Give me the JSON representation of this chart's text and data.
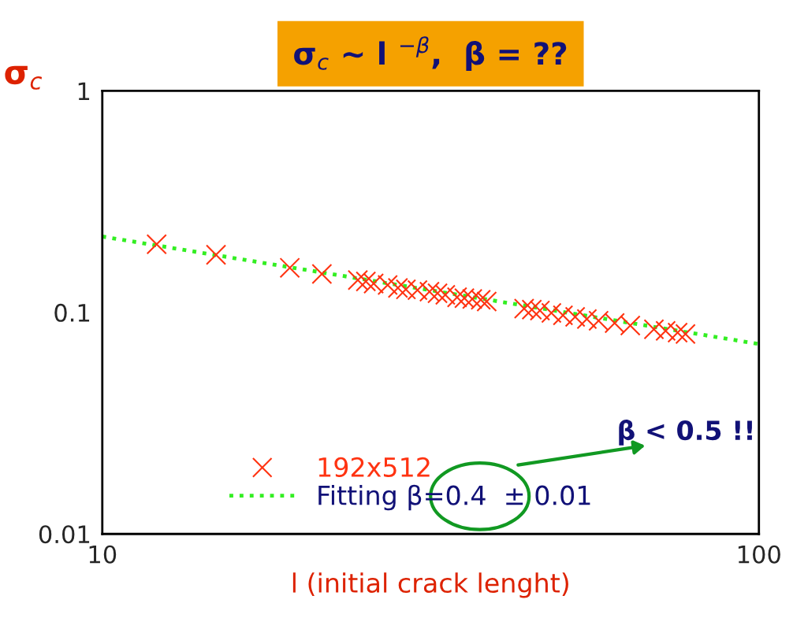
{
  "chart_data": {
    "type": "scatter",
    "title": "σ$_{c}$ ~ l $^{−β}$,  β = ??",
    "xlabel": "l (initial crack lenght)",
    "ylabel": "σ$_{c}$",
    "log": "xy",
    "xlim": [
      10,
      100
    ],
    "ylim": [
      0.01,
      1
    ],
    "xticks": [
      10,
      100
    ],
    "yticks": [
      0.01,
      0.1,
      1
    ],
    "grid": false,
    "legend": "bottom",
    "series": [
      {
        "name": "192x512",
        "color": "#ff3311",
        "marker": "cross",
        "x": [
          12.1,
          14.9,
          19.3,
          21.6,
          24.5,
          25.2,
          25.9,
          27.2,
          28.2,
          29.0,
          30.2,
          31.5,
          32.4,
          33.3,
          34.7,
          35.6,
          36.6,
          37.7,
          38.5,
          43.9,
          45.1,
          46.4,
          48.3,
          50.3,
          52.5,
          54.7,
          57.0,
          60.3,
          63.7,
          69.2,
          72.1,
          75.2,
          77.3
        ],
        "values": [
          0.203,
          0.182,
          0.159,
          0.149,
          0.14,
          0.138,
          0.135,
          0.133,
          0.129,
          0.127,
          0.126,
          0.124,
          0.122,
          0.12,
          0.117,
          0.116,
          0.115,
          0.114,
          0.112,
          0.104,
          0.103,
          0.102,
          0.0995,
          0.097,
          0.0955,
          0.0933,
          0.0917,
          0.0895,
          0.0873,
          0.0839,
          0.0826,
          0.0811,
          0.0799
        ]
      },
      {
        "name": "Fitting β=0.4  ± 0.01",
        "type": "line",
        "color": "#33ee22",
        "line_style": "dotted",
        "x": [
          10,
          100
        ],
        "values": [
          0.22,
          0.072
        ]
      }
    ],
    "annotations": [
      "β < 0.5 !!"
    ]
  }
}
